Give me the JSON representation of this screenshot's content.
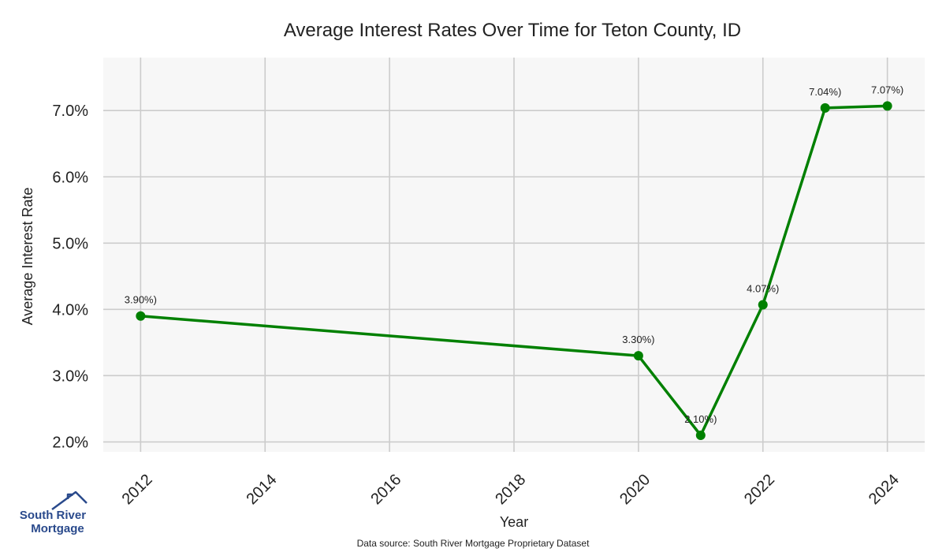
{
  "chart_data": {
    "type": "line",
    "title": "Average Interest Rates Over Time for Teton County, ID",
    "xlabel": "Year",
    "ylabel": "Average Interest Rate",
    "x": [
      2012,
      2020,
      2021,
      2022,
      2023,
      2024
    ],
    "series": [
      {
        "values": [
          3.9,
          3.3,
          2.1,
          4.07,
          7.04,
          7.07
        ],
        "labels": [
          "3.90%)",
          "3.30%)",
          "2.10%)",
          "4.07%)",
          "7.04%)",
          "7.07%)"
        ],
        "color": "#008000"
      }
    ],
    "x_ticks": [
      2012,
      2014,
      2016,
      2018,
      2020,
      2022,
      2024
    ],
    "x_tick_labels": [
      "2012",
      "2014",
      "2016",
      "2018",
      "2020",
      "2022",
      "2024"
    ],
    "y_ticks": [
      2.0,
      3.0,
      4.0,
      5.0,
      6.0,
      7.0
    ],
    "y_tick_labels": [
      "2.0%",
      "3.0%",
      "4.0%",
      "5.0%",
      "6.0%",
      "7.0%"
    ],
    "xlim": [
      2011.4,
      2024.6
    ],
    "ylim": [
      1.85,
      7.8
    ],
    "grid": true,
    "background": "#f7f7f7",
    "grid_color": "#cccccc"
  },
  "footer": {
    "source": "Data source: South River Mortgage Proprietary Dataset"
  },
  "logo": {
    "line1": "South River",
    "line2": "Mortgage",
    "color": "#2a4a8c"
  }
}
